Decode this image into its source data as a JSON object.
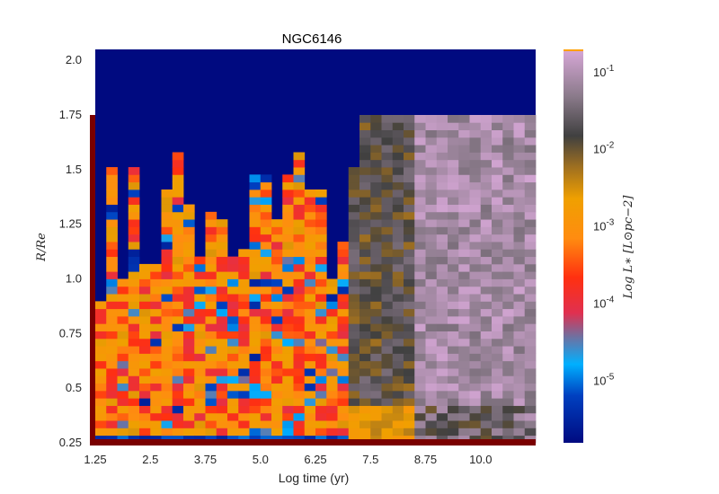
{
  "chart_data": {
    "type": "heatmap",
    "title": "NGC6146",
    "xlabel": "Log time (yr)",
    "ylabel": "R/R_e",
    "ylabel_display": "R/Re",
    "colorbar_label": "Log L_* [L_⊙ pc^-2]",
    "colorbar_label_display": "Log L∗ [L⊙pc−2]",
    "x_ticks": [
      "1.25",
      "2.5",
      "3.75",
      "5.0",
      "6.25",
      "7.5",
      "8.75",
      "10.0"
    ],
    "x_tick_values": [
      1.25,
      2.5,
      3.75,
      5.0,
      6.25,
      7.5,
      8.75,
      10.0
    ],
    "y_ticks": [
      "0.25",
      "0.5",
      "0.75",
      "1.0",
      "1.25",
      "1.5",
      "1.75",
      "2.0"
    ],
    "y_tick_values": [
      0.25,
      0.5,
      0.75,
      1.0,
      1.25,
      1.5,
      1.75,
      2.0
    ],
    "xlim": [
      1.25,
      11.25
    ],
    "ylim": [
      0.25,
      2.05
    ],
    "colorbar_ticks": [
      "10^-5",
      "10^-4",
      "10^-3",
      "10^-2",
      "10^-1"
    ],
    "colorbar_tick_values": [
      -5,
      -4,
      -3,
      -2,
      -1
    ],
    "colorbar_range": [
      -5.8,
      -0.7
    ],
    "colorscale": "gist_stern-like: dark blue, blue, cyan, red, orange, dark gray, light violet",
    "grid": false,
    "n_cols": 40,
    "n_rows": 44,
    "z_summary": {
      "outer_region_R_above_1.75": -5.8,
      "early_times_below_6.8": "mixed red / orange / blue, about 10^-4 to 10^-3",
      "times_6.8_to_8.4": "dark gray, about 10^-2 to 10^-1",
      "times_above_8.4": "light gray-violet, about 10^-1"
    }
  }
}
